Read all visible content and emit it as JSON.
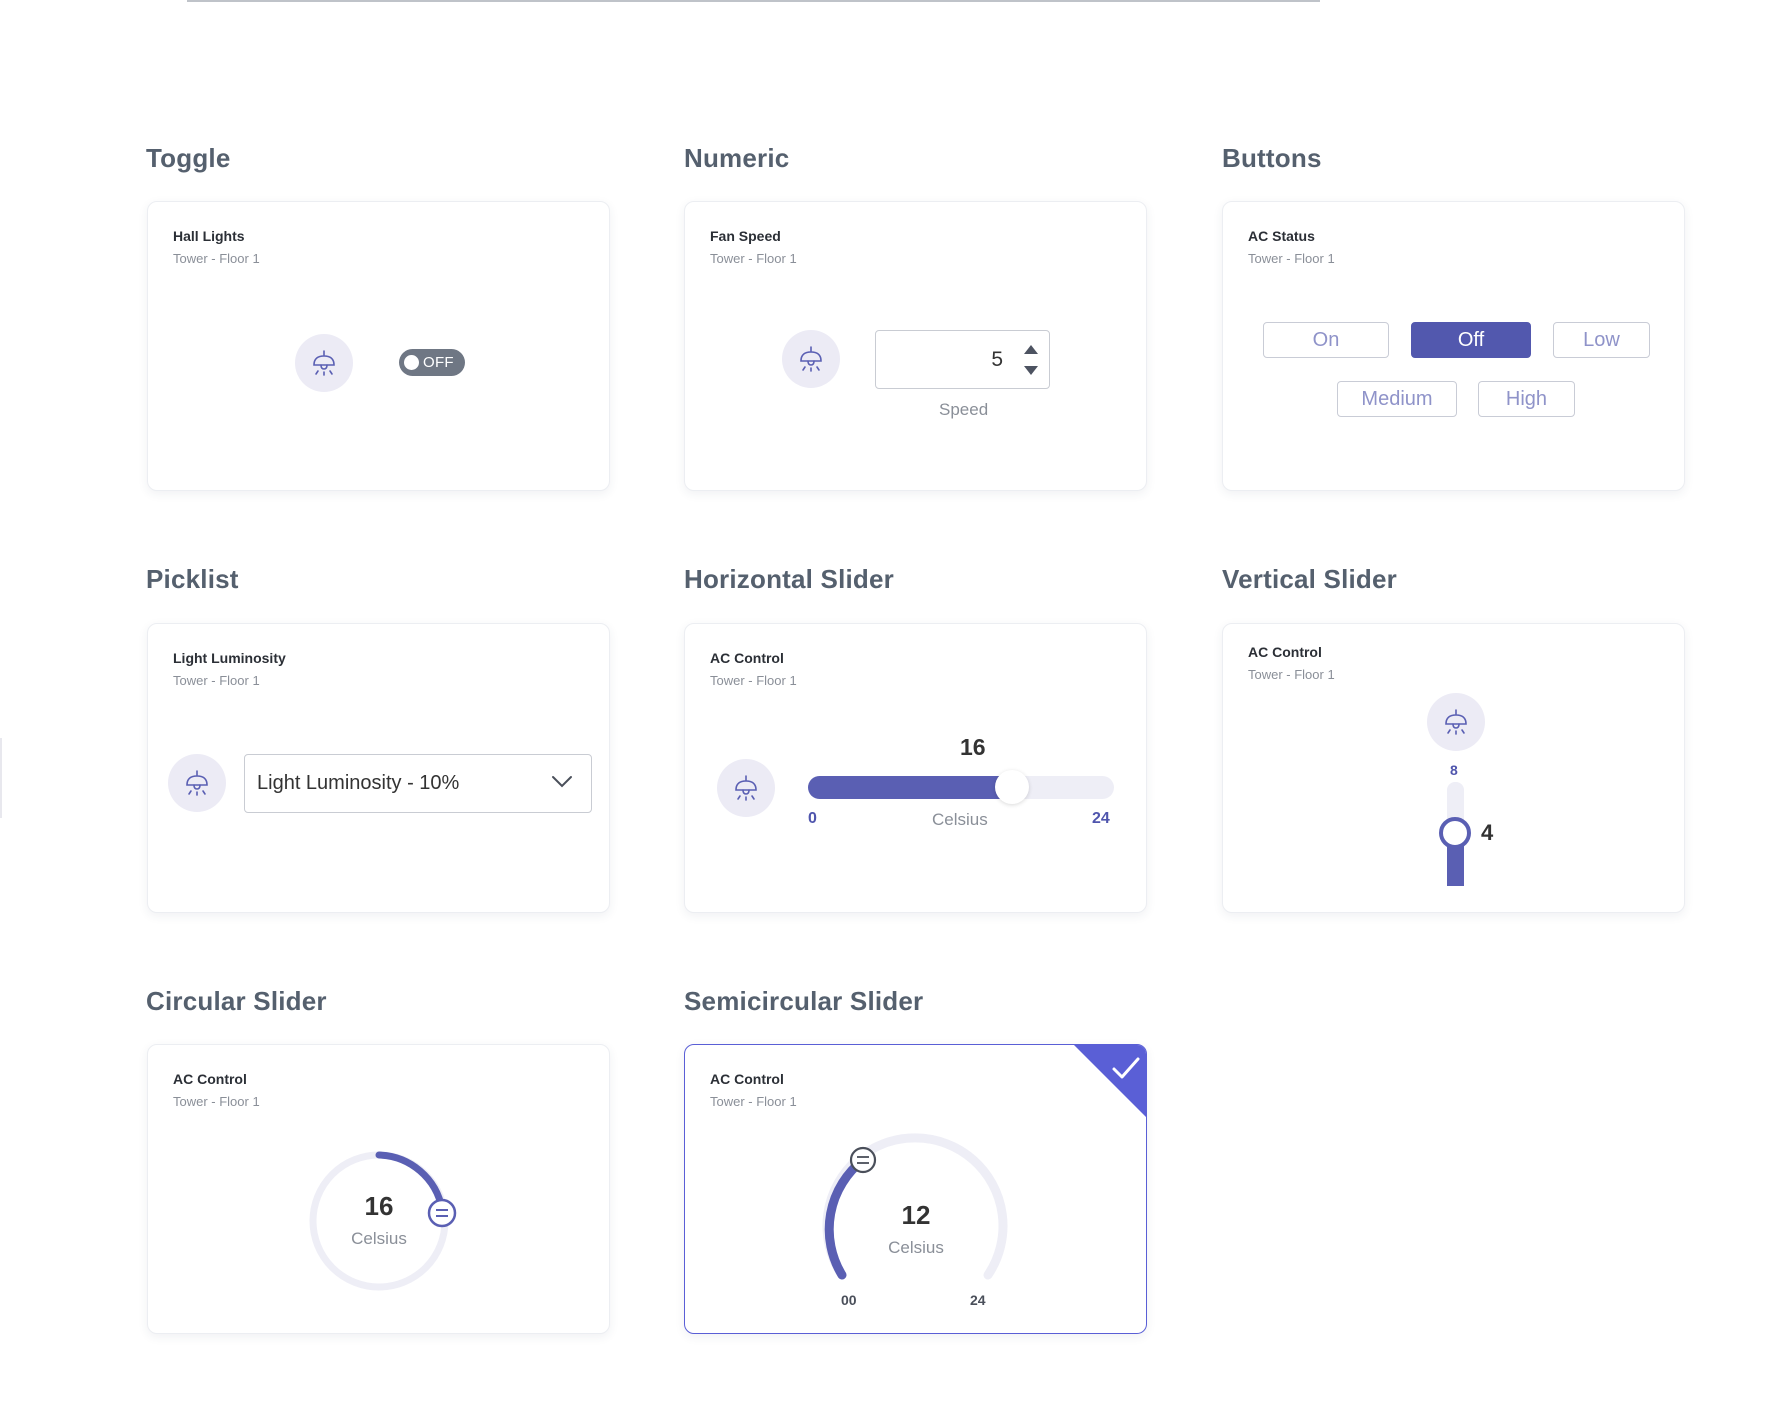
{
  "sections": {
    "toggle": "Toggle",
    "numeric": "Numeric",
    "buttons": "Buttons",
    "picklist": "Picklist",
    "horizontal_slider": "Horizontal Slider",
    "vertical_slider": "Vertical Slider",
    "circular_slider": "Circular Slider",
    "semicircular_slider": "Semicircular Slider"
  },
  "toggle_card": {
    "title": "Hall Lights",
    "subtitle": "Tower - Floor 1",
    "icon": "lamp-icon",
    "state": "OFF"
  },
  "numeric_card": {
    "title": "Fan Speed",
    "subtitle": "Tower - Floor 1",
    "icon": "lamp-icon",
    "value": "5",
    "caption": "Speed"
  },
  "buttons_card": {
    "title": "AC Status",
    "subtitle": "Tower - Floor 1",
    "options": [
      "On",
      "Off",
      "Low",
      "Medium",
      "High"
    ],
    "selected": "Off"
  },
  "picklist_card": {
    "title": "Light Luminosity",
    "subtitle": "Tower - Floor 1",
    "icon": "lamp-icon",
    "selected": "Light Luminosity - 10%"
  },
  "hslider_card": {
    "title": "AC Control",
    "subtitle": "Tower - Floor 1",
    "icon": "lamp-icon",
    "value": "16",
    "min": "0",
    "max": "24",
    "unit": "Celsius"
  },
  "vslider_card": {
    "title": "AC Control",
    "subtitle": "Tower - Floor 1",
    "icon": "lamp-icon",
    "max": "8",
    "value": "4"
  },
  "circular_card": {
    "title": "AC Control",
    "subtitle": "Tower - Floor 1",
    "value": "16",
    "unit": "Celsius"
  },
  "semicircular_card": {
    "title": "AC Control",
    "subtitle": "Tower - Floor 1",
    "value": "12",
    "unit": "Celsius",
    "min": "00",
    "max": "24",
    "selected": true
  },
  "colors": {
    "accent": "#5a5fb3",
    "selected_border": "#5a5fd6",
    "track": "#eeeef6",
    "heading": "#55606e"
  }
}
